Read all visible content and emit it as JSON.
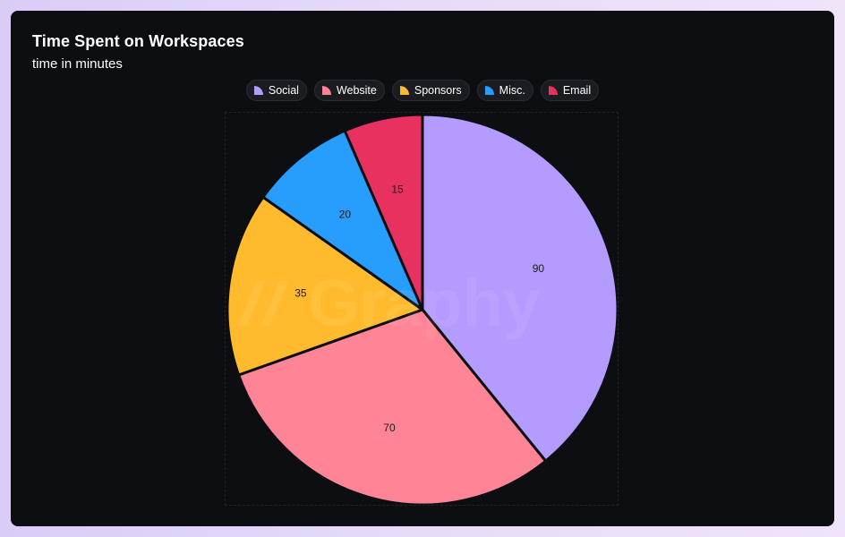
{
  "title": "Time Spent on Workspaces",
  "subtitle": "time in minutes",
  "watermark_text": "Graphy",
  "legend": [
    {
      "label": "Social",
      "color": "#b49bff"
    },
    {
      "label": "Website",
      "color": "#ff8496"
    },
    {
      "label": "Sponsors",
      "color": "#ffbb2d"
    },
    {
      "label": "Misc.",
      "color": "#279efe"
    },
    {
      "label": "Email",
      "color": "#e8315f"
    }
  ],
  "chart_data": {
    "type": "pie",
    "title": "Time Spent on Workspaces",
    "subtitle": "time in minutes",
    "categories": [
      "Social",
      "Website",
      "Sponsors",
      "Misc.",
      "Email"
    ],
    "values": [
      90,
      70,
      35,
      20,
      15
    ],
    "labels": [
      "90",
      "70",
      "35",
      "20",
      "15"
    ],
    "colors": [
      "#b49bff",
      "#ff8496",
      "#ffbb2d",
      "#279efe",
      "#e8315f"
    ],
    "legend_position": "top-center",
    "start_angle": "top, clockwise"
  }
}
